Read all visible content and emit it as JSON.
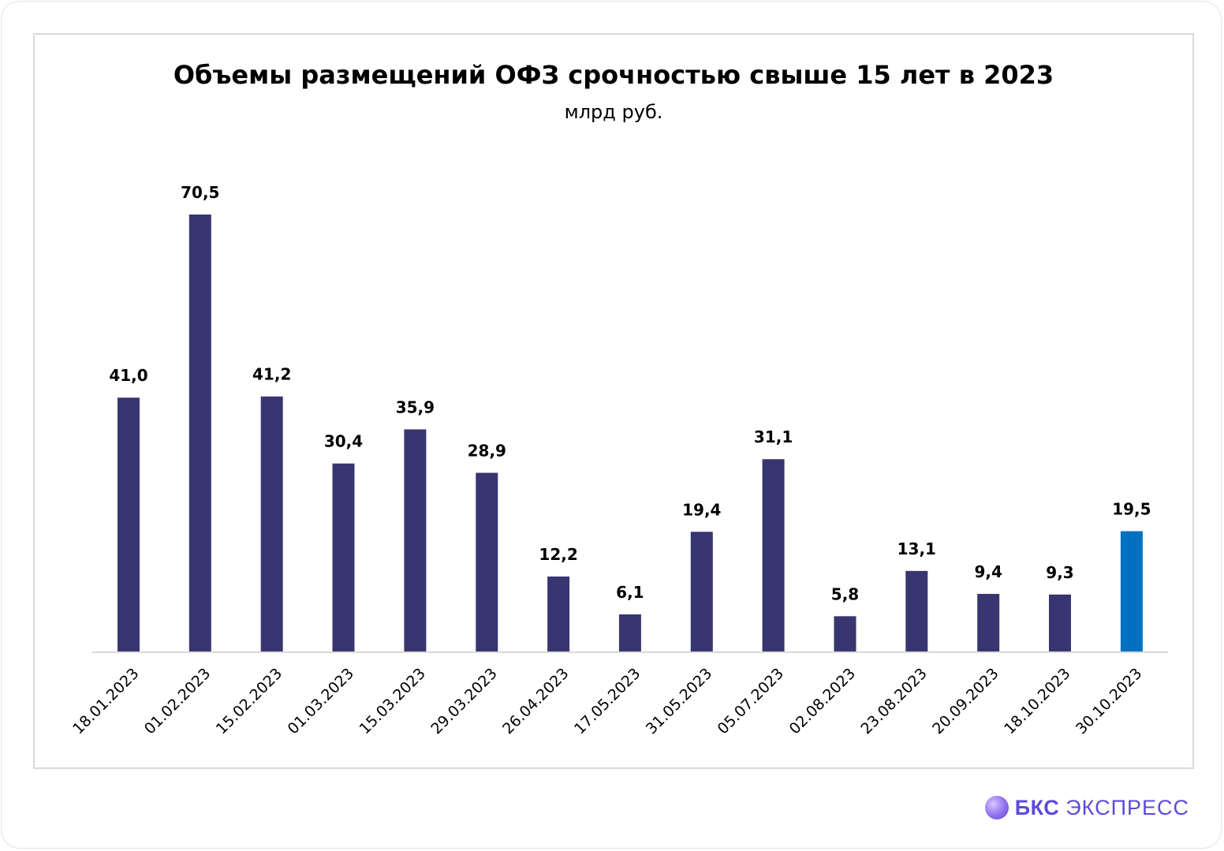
{
  "chart_data": {
    "type": "bar",
    "title": "Объемы размещений ОФЗ срочностью свыше 15 лет в 2023",
    "subtitle": "млрд руб.",
    "categories": [
      "18.01.2023",
      "01.02.2023",
      "15.02.2023",
      "01.03.2023",
      "15.03.2023",
      "29.03.2023",
      "26.04.2023",
      "17.05.2023",
      "31.05.2023",
      "05.07.2023",
      "02.08.2023",
      "23.08.2023",
      "20.09.2023",
      "18.10.2023",
      "30.10.2023"
    ],
    "values": [
      41.0,
      70.5,
      41.2,
      30.4,
      35.9,
      28.9,
      12.2,
      6.1,
      19.4,
      31.1,
      5.8,
      13.1,
      9.4,
      9.3,
      19.5
    ],
    "data_labels": [
      "41,0",
      "70,5",
      "41,2",
      "30,4",
      "35,9",
      "28,9",
      "12,2",
      "6,1",
      "19,4",
      "31,1",
      "5,8",
      "13,1",
      "9,4",
      "9,3",
      "19,5"
    ],
    "bar_color": "#373670",
    "highlight_color": "#0070c0",
    "highlight_category": "30.10.2023",
    "ylim": [
      0,
      70.5
    ],
    "grid": false,
    "legend": "none"
  },
  "brand": {
    "name": "БКС",
    "suffix": "ЭКСПРЕСС"
  }
}
